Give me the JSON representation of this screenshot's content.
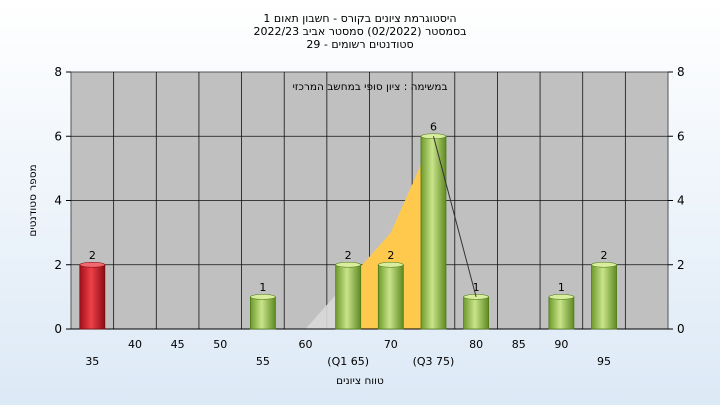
{
  "chart_data": {
    "type": "bar",
    "title_lines": [
      "היסטוגרמת ציונים בקורס - חשבון תאום 1",
      "בסמסטר (02/2022) סמסטר אביב 2022/23",
      "סטודנטים רשומים - 29"
    ],
    "annotation": "במשימה : ציון סופי במחשב המרכזי",
    "xlabel": "טווח ציונים",
    "ylabel": "מספר סטודנטים",
    "ylim": [
      0,
      8
    ],
    "y_ticks": [
      "0",
      "2",
      "4",
      "6",
      "8"
    ],
    "x_ticks": [
      {
        "x": 35,
        "label": "35",
        "row": 2
      },
      {
        "x": 40,
        "label": "40",
        "row": 1
      },
      {
        "x": 45,
        "label": "45",
        "row": 1
      },
      {
        "x": 50,
        "label": "50",
        "row": 1
      },
      {
        "x": 55,
        "label": "55",
        "row": 2
      },
      {
        "x": 60,
        "label": "60",
        "row": 1
      },
      {
        "x": 65,
        "label": "(Q1 65)",
        "row": 2
      },
      {
        "x": 70,
        "label": "70",
        "row": 1
      },
      {
        "x": 75,
        "label": "(Q3 75)",
        "row": 2
      },
      {
        "x": 80,
        "label": "80",
        "row": 1
      },
      {
        "x": 85,
        "label": "85",
        "row": 1
      },
      {
        "x": 90,
        "label": "90",
        "row": 1
      },
      {
        "x": 95,
        "label": "95",
        "row": 2
      }
    ],
    "bars": [
      {
        "x": 35,
        "value": 2,
        "label": "2",
        "color": "red"
      },
      {
        "x": 55,
        "value": 1,
        "label": "1",
        "color": "green"
      },
      {
        "x": 65,
        "value": 2,
        "label": "2",
        "color": "green"
      },
      {
        "x": 70,
        "value": 2,
        "label": "2",
        "color": "green"
      },
      {
        "x": 75,
        "value": 6,
        "label": "6",
        "color": "green"
      },
      {
        "x": 80,
        "value": 1,
        "label": "1",
        "color": "green"
      },
      {
        "x": 90,
        "value": 1,
        "label": "1",
        "color": "green"
      },
      {
        "x": 95,
        "value": 2,
        "label": "2",
        "color": "green"
      }
    ],
    "gray_area": [
      {
        "x": 60,
        "y": 0
      },
      {
        "x": 65,
        "y": 1.5
      }
    ],
    "interquartile_area": [
      {
        "x": 65,
        "y": 1.5
      },
      {
        "x": 70,
        "y": 3.0
      },
      {
        "x": 75,
        "y": 6
      }
    ],
    "distribution_line": [
      {
        "x": 75,
        "y": 6
      },
      {
        "x": 80,
        "y": 1
      }
    ],
    "colors": {
      "plot_bg": "#c0c0c0",
      "red_bar": "#d8202a",
      "green_bar": "#9ac24e",
      "quartile_fill": "#ffc94d",
      "gray_fill": "#d9d9d9"
    }
  }
}
